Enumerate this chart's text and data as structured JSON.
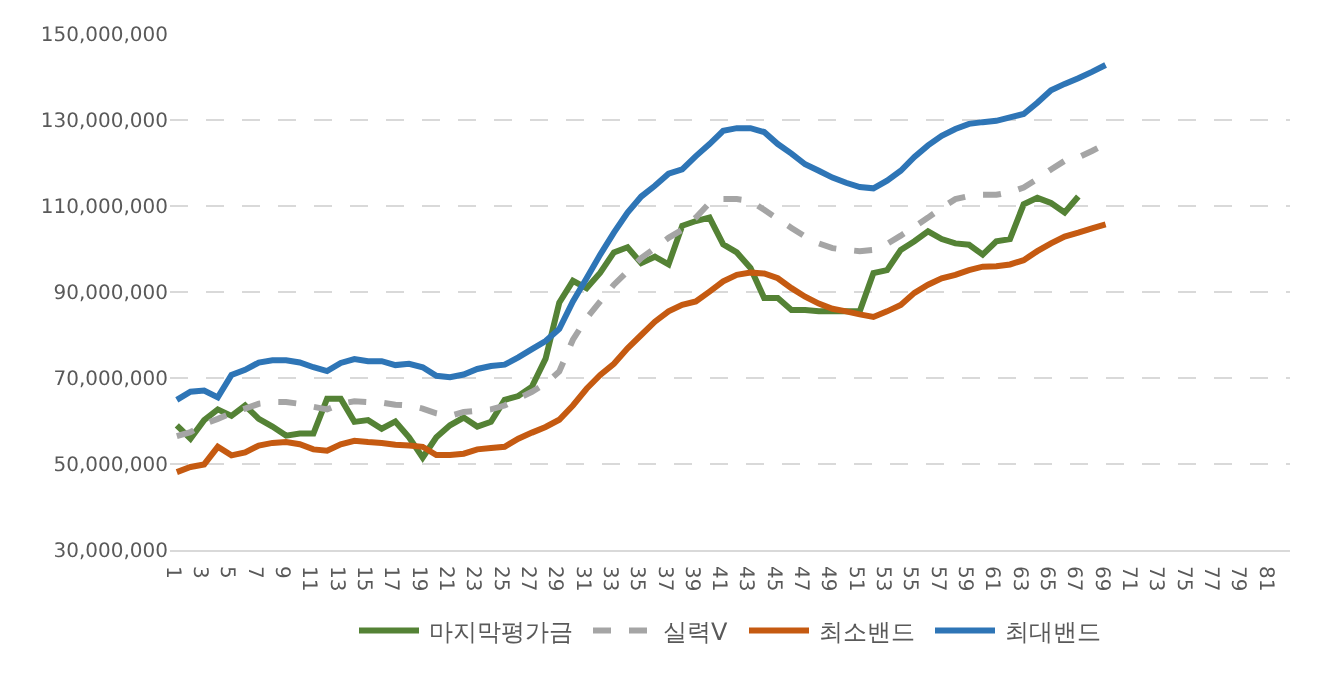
{
  "chart_data": {
    "type": "line",
    "categories": [
      "1",
      null,
      "3",
      null,
      "5",
      null,
      "7",
      null,
      "9",
      null,
      "11",
      null,
      "13",
      null,
      "15",
      null,
      "17",
      null,
      "19",
      null,
      "21",
      null,
      "23",
      null,
      "25",
      null,
      "27",
      null,
      "29",
      null,
      "31",
      null,
      "33",
      null,
      "35",
      null,
      "37",
      null,
      "39",
      null,
      "41",
      null,
      "43",
      null,
      "45",
      null,
      "47",
      null,
      "49",
      null,
      "51",
      null,
      "53",
      null,
      "55",
      null,
      "57",
      null,
      "59",
      null,
      "61",
      null,
      "63",
      null,
      "65",
      null,
      "67",
      null,
      "69",
      null,
      "71",
      null,
      "73",
      null,
      "75",
      null,
      "77",
      null,
      "79",
      null,
      "81",
      null
    ],
    "series": [
      {
        "name": "마지막평가금",
        "color": "#548235",
        "line_style": "solid",
        "values": [
          59000000,
          55900000,
          60200000,
          62700000,
          61200000,
          63600000,
          60500000,
          58700000,
          56600000,
          57100000,
          57100000,
          65200000,
          65200000,
          59800000,
          60200000,
          58200000,
          59900000,
          56200000,
          51500000,
          56200000,
          59000000,
          60800000,
          58700000,
          59800000,
          64900000,
          65800000,
          68000000,
          74500000,
          87500000,
          92600000,
          90900000,
          94500000,
          99200000,
          100400000,
          96700000,
          98200000,
          96400000,
          105400000,
          106500000,
          107300000,
          101100000,
          99200000,
          95600000,
          88600000,
          88600000,
          85800000,
          85800000,
          85500000,
          85500000,
          85500000,
          85500000,
          94400000,
          95100000,
          99800000,
          101800000,
          104100000,
          102300000,
          101300000,
          101000000,
          98700000,
          101800000,
          102300000,
          110400000,
          111900000,
          110700000,
          108500000,
          112200000,
          null,
          null,
          null,
          null,
          null,
          null,
          null,
          null,
          null,
          null,
          null,
          null,
          null,
          null,
          null
        ]
      },
      {
        "name": "실력V",
        "color": "#a5a5a5",
        "line_style": "dashed",
        "values": [
          56500000,
          57400000,
          59300000,
          60500000,
          61800000,
          62900000,
          64000000,
          64400000,
          64400000,
          64000000,
          63300000,
          62700000,
          64000000,
          64600000,
          64400000,
          64300000,
          63800000,
          63600000,
          62900000,
          61800000,
          61200000,
          62100000,
          62400000,
          62700000,
          63600000,
          65200000,
          66800000,
          68700000,
          71500000,
          78900000,
          83900000,
          87800000,
          91700000,
          94800000,
          97900000,
          100200000,
          102600000,
          104500000,
          107300000,
          110700000,
          111600000,
          111600000,
          111200000,
          109100000,
          107000000,
          104900000,
          102900000,
          101300000,
          100200000,
          99800000,
          99500000,
          99800000,
          101200000,
          103100000,
          105200000,
          107300000,
          109600000,
          111600000,
          112300000,
          112600000,
          112600000,
          113200000,
          114300000,
          116300000,
          118500000,
          120500000,
          121300000,
          122800000,
          124400000,
          null,
          null,
          null,
          null,
          null,
          null,
          null,
          null,
          null,
          null,
          null,
          null,
          null
        ]
      },
      {
        "name": "최소밴드",
        "color": "#c55a11",
        "line_style": "solid",
        "values": [
          48100000,
          49300000,
          49900000,
          54000000,
          52000000,
          52700000,
          54300000,
          54900000,
          55100000,
          54600000,
          53400000,
          53100000,
          54600000,
          55400000,
          55100000,
          54900000,
          54500000,
          54300000,
          54000000,
          52100000,
          52100000,
          52400000,
          53400000,
          53700000,
          54000000,
          55900000,
          57300000,
          58600000,
          60300000,
          63600000,
          67500000,
          70700000,
          73300000,
          76900000,
          80000000,
          83100000,
          85500000,
          87000000,
          87800000,
          90100000,
          92500000,
          94000000,
          94500000,
          94300000,
          93200000,
          90900000,
          88900000,
          87300000,
          86100000,
          85500000,
          84800000,
          84200000,
          85500000,
          87000000,
          89800000,
          91700000,
          93200000,
          94000000,
          95100000,
          95900000,
          96000000,
          96400000,
          97400000,
          99500000,
          101300000,
          102900000,
          103800000,
          104800000,
          105700000,
          null,
          null,
          null,
          null,
          null,
          null,
          null,
          null,
          null,
          null,
          null,
          null,
          null
        ]
      },
      {
        "name": "최대밴드",
        "color": "#2e75b6",
        "line_style": "solid",
        "values": [
          64900000,
          66800000,
          67100000,
          65500000,
          70700000,
          71900000,
          73600000,
          74100000,
          74100000,
          73600000,
          72500000,
          71600000,
          73500000,
          74400000,
          73900000,
          73900000,
          73000000,
          73300000,
          72500000,
          70500000,
          70200000,
          70800000,
          72100000,
          72800000,
          73100000,
          74800000,
          76700000,
          78600000,
          81400000,
          87800000,
          93200000,
          98700000,
          103800000,
          108500000,
          112200000,
          114700000,
          117500000,
          118500000,
          121600000,
          124400000,
          127500000,
          128100000,
          128100000,
          127200000,
          124400000,
          122200000,
          119700000,
          118200000,
          116600000,
          115400000,
          114400000,
          114100000,
          115900000,
          118200000,
          121400000,
          124100000,
          126300000,
          127900000,
          129100000,
          129500000,
          129800000,
          130600000,
          131400000,
          134000000,
          136900000,
          138400000,
          139700000,
          141200000,
          142800000,
          null,
          null,
          null,
          null,
          null,
          null,
          null,
          null,
          null,
          null,
          null,
          null,
          null
        ]
      }
    ],
    "ylim": [
      30000000,
      150000000
    ],
    "yticks": [
      {
        "value": 30000000,
        "label": "30,000,000"
      },
      {
        "value": 50000000,
        "label": "50,000,000"
      },
      {
        "value": 70000000,
        "label": "70,000,000"
      },
      {
        "value": 90000000,
        "label": "90,000,000"
      },
      {
        "value": 110000000,
        "label": "110,000,000"
      },
      {
        "value": 130000000,
        "label": "130,000,000"
      },
      {
        "value": 150000000,
        "label": "150,000,000"
      }
    ],
    "grid": "y",
    "legend": "bottom",
    "marker": "none"
  }
}
